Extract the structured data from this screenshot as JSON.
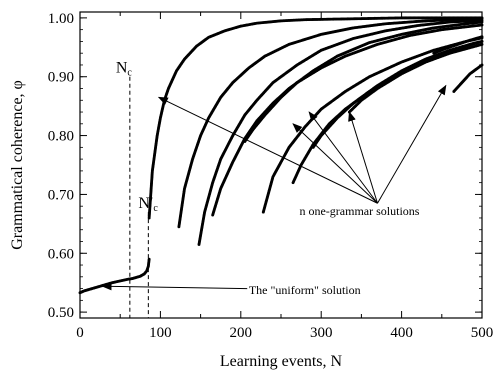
{
  "chart_data": {
    "type": "scatter",
    "title": "",
    "xlabel": "Learning events, N",
    "ylabel": "Grammatical coherence, φ",
    "xlim": [
      0,
      500
    ],
    "ylim": [
      0.49,
      1.01
    ],
    "x_ticks": [
      "0",
      "100",
      "200",
      "300",
      "400",
      "500"
    ],
    "y_ticks": [
      "0.50",
      "0.60",
      "0.70",
      "0.80",
      "0.90",
      "1.00"
    ],
    "x_tick_values": [
      0,
      100,
      200,
      300,
      400,
      500
    ],
    "y_tick_values": [
      0.5,
      0.6,
      0.7,
      0.8,
      0.9,
      1.0
    ],
    "grid": false,
    "marker_color": "#000000",
    "series": [
      {
        "values_x": [
          0,
          5,
          10,
          20,
          30,
          40,
          50,
          60,
          65,
          70,
          75,
          80,
          83,
          85,
          86
        ],
        "values_y": [
          0.533,
          0.536,
          0.538,
          0.542,
          0.546,
          0.55,
          0.553,
          0.556,
          0.557,
          0.559,
          0.561,
          0.565,
          0.57,
          0.578,
          0.59
        ]
      },
      {
        "values_x": [
          86,
          88,
          90,
          93,
          96,
          100,
          105,
          110,
          120,
          130,
          145,
          160,
          180,
          200,
          220,
          250,
          280,
          320,
          360,
          400,
          450,
          500
        ],
        "values_y": [
          0.66,
          0.7,
          0.74,
          0.77,
          0.8,
          0.83,
          0.86,
          0.88,
          0.91,
          0.93,
          0.952,
          0.967,
          0.978,
          0.986,
          0.991,
          0.995,
          0.997,
          0.998,
          0.999,
          1.0,
          1.0,
          1.0
        ]
      },
      {
        "values_x": [
          123,
          130,
          140,
          150,
          160,
          175,
          190,
          210,
          230,
          260,
          300,
          340,
          380,
          420,
          460,
          500
        ],
        "values_y": [
          0.645,
          0.71,
          0.76,
          0.8,
          0.83,
          0.865,
          0.89,
          0.915,
          0.935,
          0.955,
          0.972,
          0.983,
          0.99,
          0.994,
          0.997,
          0.999
        ]
      },
      {
        "values_x": [
          148,
          155,
          165,
          175,
          190,
          205,
          220,
          240,
          270,
          300,
          340,
          380,
          420,
          460,
          500
        ],
        "values_y": [
          0.615,
          0.67,
          0.72,
          0.76,
          0.8,
          0.835,
          0.86,
          0.89,
          0.92,
          0.945,
          0.965,
          0.978,
          0.987,
          0.993,
          0.996
        ]
      },
      {
        "values_x": [
          165,
          175,
          190,
          205,
          220,
          240,
          260,
          290,
          320,
          360,
          400,
          440,
          480,
          500
        ],
        "values_y": [
          0.665,
          0.71,
          0.755,
          0.795,
          0.825,
          0.855,
          0.88,
          0.91,
          0.935,
          0.958,
          0.972,
          0.983,
          0.99,
          0.993
        ]
      },
      {
        "values_x": [
          205,
          215,
          230,
          250,
          270,
          300,
          330,
          370,
          410,
          450,
          500
        ],
        "values_y": [
          0.79,
          0.81,
          0.835,
          0.865,
          0.89,
          0.915,
          0.935,
          0.955,
          0.97,
          0.98,
          0.988
        ]
      },
      {
        "values_x": [
          228,
          240,
          260,
          280,
          300,
          330,
          360,
          400,
          440,
          480,
          500
        ],
        "values_y": [
          0.67,
          0.73,
          0.78,
          0.815,
          0.845,
          0.875,
          0.9,
          0.925,
          0.945,
          0.96,
          0.966
        ]
      },
      {
        "values_x": [
          265,
          275,
          290,
          310,
          330,
          360,
          390,
          420,
          450,
          480,
          500
        ],
        "values_y": [
          0.72,
          0.75,
          0.785,
          0.82,
          0.845,
          0.875,
          0.9,
          0.92,
          0.937,
          0.952,
          0.96
        ]
      },
      {
        "values_x": [
          290,
          300,
          320,
          340,
          370,
          400,
          430,
          460,
          490,
          500
        ],
        "values_y": [
          0.78,
          0.8,
          0.83,
          0.855,
          0.885,
          0.91,
          0.93,
          0.945,
          0.957,
          0.96
        ]
      },
      {
        "values_x": [
          335,
          350,
          370,
          400,
          430,
          460,
          500
        ],
        "values_y": [
          0.84,
          0.86,
          0.88,
          0.905,
          0.925,
          0.94,
          0.955
        ]
      },
      {
        "values_x": [
          440,
          455,
          470,
          485,
          500
        ],
        "values_y": [
          0.94,
          0.948,
          0.955,
          0.962,
          0.968
        ]
      },
      {
        "values_x": [
          465,
          475,
          485,
          495,
          500
        ],
        "values_y": [
          0.875,
          0.89,
          0.905,
          0.915,
          0.92
        ]
      }
    ],
    "critical_lines": [
      {
        "x": 62,
        "y_top": 0.9,
        "label_main": "N",
        "label_sub": "c"
      },
      {
        "x": 85,
        "y_top": 0.67,
        "label_main": "N′",
        "label_sub": "c"
      }
    ],
    "annotations": [
      {
        "text": "n one-grammar solutions",
        "text_x": 273,
        "text_y": 0.672,
        "origin": [
          370,
          0.685
        ],
        "targets": [
          [
            98,
            0.865
          ],
          [
            265,
            0.82
          ],
          [
            285,
            0.84
          ],
          [
            335,
            0.84
          ],
          [
            455,
            0.885
          ]
        ]
      },
      {
        "text": "The \"uniform\" solution",
        "text_x": 210,
        "text_y": 0.538,
        "origin": [
          208,
          0.54
        ],
        "targets": [
          [
            28,
            0.544
          ]
        ]
      }
    ]
  }
}
